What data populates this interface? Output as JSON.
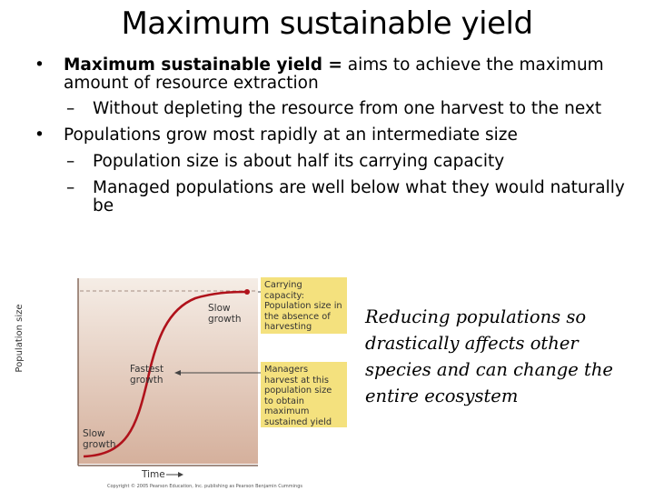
{
  "slide": {
    "title": "Maximum sustainable yield",
    "bullets": {
      "b1_bold": "Maximum sustainable yield =",
      "b1_rest": "aims to achieve the maximum amount of resource extraction",
      "b1_sub1": "Without depleting the resource from one harvest to the next",
      "b2": "Populations grow most rapidly at an intermediate size",
      "b2_sub1": "Population size is about half its carrying capacity",
      "b2_sub2": "Managed populations are well below what they would naturally be"
    },
    "note": "Reducing populations so drastically affects other species and can change the entire ecosystem"
  },
  "figure": {
    "y_axis_label": "Population size",
    "x_axis_label": "Time",
    "labels": {
      "slow_growth_top": "Slow growth",
      "fastest_growth": "Fastest growth",
      "slow_growth_bottom": "Slow growth"
    },
    "callouts": {
      "carrying_capacity": "Carrying capacity: Population size in the absence of harvesting",
      "managers_harvest": "Managers harvest at this population size to obtain maximum sustained yield"
    },
    "copyright": "Copyright © 2005 Pearson Education, Inc. publishing as Pearson Benjamin Cummings",
    "colors": {
      "panel_top": "#f3e9df",
      "panel_bottom": "#d9b8a6",
      "curve": "#b0121b",
      "callout": "#f4e17e"
    }
  }
}
